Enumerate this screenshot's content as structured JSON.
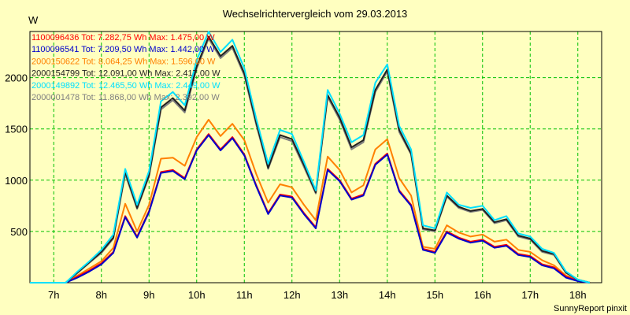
{
  "chart_data": {
    "type": "line",
    "title": "Wechselrichtervergleich vom 29.03.2013",
    "ylabel": "W",
    "xlabel": "",
    "x_start_hour": 6.5,
    "x_step_hours": 0.25,
    "xlim": [
      6.5,
      18.5
    ],
    "ylim": [
      0,
      2450
    ],
    "y_ticks": [
      500,
      1000,
      1500,
      2000
    ],
    "x_ticks": [
      {
        "value": 7,
        "label": "7h"
      },
      {
        "value": 8,
        "label": "8h"
      },
      {
        "value": 9,
        "label": "9h"
      },
      {
        "value": 10,
        "label": "10h"
      },
      {
        "value": 11,
        "label": "11h"
      },
      {
        "value": 12,
        "label": "12h"
      },
      {
        "value": 13,
        "label": "13h"
      },
      {
        "value": 14,
        "label": "14h"
      },
      {
        "value": 15,
        "label": "15h"
      },
      {
        "value": 16,
        "label": "16h"
      },
      {
        "value": 17,
        "label": "17h"
      },
      {
        "value": 18,
        "label": "18h"
      }
    ],
    "grid": true,
    "legend_position": "top-left",
    "series": [
      {
        "name": "1100096436 Tot: 7.282,75 Wh Max: 1.475,00 W",
        "color": "#ff0000",
        "values": [
          0,
          0,
          0,
          0,
          60,
          120,
          190,
          300,
          650,
          450,
          700,
          1080,
          1100,
          1020,
          1300,
          1450,
          1300,
          1420,
          1250,
          950,
          680,
          860,
          840,
          680,
          540,
          1110,
          1000,
          820,
          860,
          1160,
          1260,
          900,
          760,
          330,
          300,
          500,
          440,
          400,
          420,
          350,
          370,
          280,
          260,
          180,
          150,
          60,
          20,
          0
        ]
      },
      {
        "name": "1100096541 Tot: 7.209,50 Wh Max: 1.442,00 W",
        "color": "#0000cc",
        "values": [
          0,
          0,
          0,
          0,
          50,
          110,
          180,
          290,
          640,
          440,
          690,
          1070,
          1090,
          1010,
          1290,
          1440,
          1290,
          1410,
          1240,
          940,
          670,
          850,
          830,
          670,
          530,
          1100,
          990,
          810,
          850,
          1150,
          1250,
          890,
          750,
          320,
          290,
          490,
          430,
          390,
          410,
          340,
          360,
          270,
          250,
          170,
          140,
          50,
          15,
          0
        ]
      },
      {
        "name": "2000150622 Tot: 8.064,25 Wh Max: 1.596,00 W",
        "color": "#ff8000",
        "values": [
          0,
          0,
          0,
          0,
          70,
          140,
          210,
          340,
          770,
          500,
          760,
          1210,
          1220,
          1140,
          1420,
          1590,
          1430,
          1550,
          1390,
          1060,
          780,
          960,
          930,
          760,
          610,
          1230,
          1100,
          880,
          950,
          1300,
          1400,
          1020,
          850,
          350,
          330,
          560,
          490,
          450,
          470,
          400,
          420,
          320,
          300,
          220,
          170,
          70,
          25,
          0
        ]
      },
      {
        "name": "2000154799 Tot: 12.091,00 Wh Max: 2.417,00 W",
        "color": "#202020",
        "values": [
          0,
          0,
          0,
          0,
          100,
          200,
          300,
          440,
          1080,
          730,
          1050,
          1710,
          1800,
          1680,
          2110,
          2400,
          2210,
          2310,
          2040,
          1560,
          1120,
          1440,
          1400,
          1150,
          880,
          1830,
          1610,
          1320,
          1390,
          1880,
          2080,
          1490,
          1260,
          530,
          510,
          850,
          740,
          700,
          720,
          590,
          620,
          460,
          430,
          310,
          280,
          100,
          30,
          0
        ]
      },
      {
        "name": "2000149892 Tot: 12.465,50 Wh Max: 2.449,00 W",
        "color": "#00e0ff",
        "values": [
          0,
          0,
          0,
          0,
          110,
          210,
          320,
          470,
          1110,
          760,
          1090,
          1770,
          1860,
          1730,
          2170,
          2449,
          2250,
          2370,
          2090,
          1600,
          1160,
          1490,
          1450,
          1180,
          900,
          1880,
          1650,
          1370,
          1440,
          1950,
          2130,
          1530,
          1300,
          560,
          530,
          880,
          760,
          730,
          750,
          610,
          650,
          480,
          450,
          330,
          290,
          110,
          30,
          0
        ]
      },
      {
        "name": "2000001478 Tot: 11.868,00 Wh Max: 2.392,00 W",
        "color": "#808080",
        "values": [
          0,
          0,
          0,
          0,
          95,
          195,
          290,
          430,
          1060,
          720,
          1040,
          1690,
          1780,
          1660,
          2090,
          2380,
          2190,
          2290,
          2020,
          1540,
          1110,
          1420,
          1380,
          1130,
          870,
          1810,
          1590,
          1300,
          1370,
          1860,
          2060,
          1470,
          1250,
          520,
          500,
          840,
          730,
          690,
          710,
          580,
          610,
          450,
          420,
          300,
          270,
          95,
          28,
          0
        ]
      }
    ],
    "footer": "SunnyReport pinxit"
  }
}
